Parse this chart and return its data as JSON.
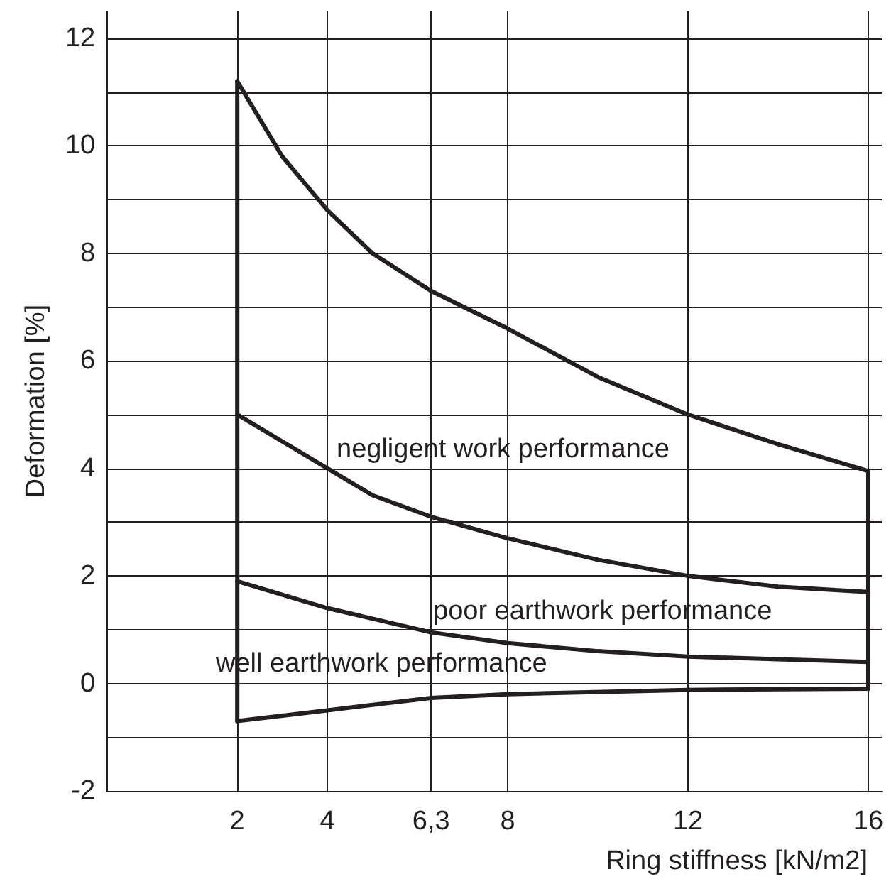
{
  "chart_data": {
    "type": "line",
    "xlabel": "Ring stiffness [kN/m2]",
    "ylabel": "Deformation [%]",
    "x": [
      2,
      3,
      4,
      5,
      6.3,
      8,
      10,
      12,
      14,
      16
    ],
    "series": [
      {
        "color": "#231f20",
        "values": [
          11.2,
          9.8,
          8.8,
          8.0,
          7.3,
          6.6,
          5.7,
          5.0,
          4.45,
          3.95
        ]
      },
      {
        "color": "#231f20",
        "values": [
          5.0,
          4.5,
          4.0,
          3.5,
          3.1,
          2.7,
          2.3,
          2.0,
          1.8,
          1.7
        ]
      },
      {
        "color": "#231f20",
        "x": [
          2,
          4,
          6.3,
          8,
          10,
          12,
          14,
          16
        ],
        "values": [
          1.9,
          1.4,
          0.95,
          0.75,
          0.6,
          0.5,
          0.45,
          0.4
        ]
      },
      {
        "color": "#231f20",
        "x": [
          2,
          4,
          6.3,
          8,
          12,
          16
        ],
        "values": [
          -0.7,
          -0.5,
          -0.27,
          -0.2,
          -0.12,
          -0.1
        ]
      },
      {
        "color": "#231f20",
        "x": [
          2,
          2
        ],
        "values": [
          -0.7,
          11.2
        ]
      },
      {
        "color": "#231f20",
        "x": [
          16,
          16
        ],
        "values": [
          -0.1,
          3.95
        ]
      }
    ],
    "xlim": [
      -0.9,
      16.3
    ],
    "xticks": [
      2,
      4,
      {
        "value": 6.3,
        "label": "6,3"
      },
      8,
      12,
      16
    ],
    "ylim": [
      -2,
      12.5
    ],
    "yticks": [
      -2,
      {
        "value": -1,
        "label": null
      },
      0,
      {
        "value": 1,
        "label": null
      },
      2,
      {
        "value": 3,
        "label": null
      },
      4,
      {
        "value": 5,
        "label": null
      },
      6,
      {
        "value": 7,
        "label": null
      },
      8,
      {
        "value": 9,
        "label": null
      },
      10,
      {
        "value": 11,
        "label": null
      },
      12
    ],
    "grid": true,
    "marker": "none",
    "line_style": "solid",
    "annotations": [
      "negligent work performance",
      "poor earthwork performance",
      "well earthwork performance"
    ]
  }
}
